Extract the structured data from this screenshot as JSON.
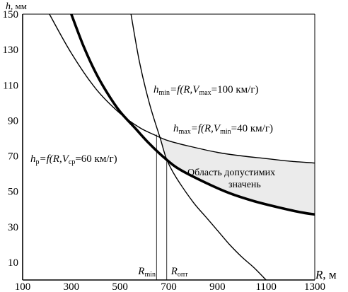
{
  "chart_data": {
    "type": "line",
    "xlabel": {
      "var": "R",
      "unit": ", м"
    },
    "ylabel": {
      "var": "h",
      "unit": ", мм"
    },
    "xlim": [
      100,
      1300
    ],
    "ylim": [
      0,
      150
    ],
    "x_ticks": [
      "100",
      "300",
      "500",
      "700",
      "900",
      "1100",
      "1300"
    ],
    "x_tick_values": [
      100,
      300,
      500,
      700,
      900,
      1100,
      1300
    ],
    "y_ticks": [
      "10",
      "30",
      "50",
      "70",
      "90",
      "110",
      "130",
      "150"
    ],
    "y_tick_values": [
      10,
      30,
      50,
      70,
      90,
      110,
      130,
      150
    ],
    "grid": false,
    "series": [
      {
        "key": "hmax",
        "style": "thin",
        "points": [
          [
            210,
            150
          ],
          [
            300,
            128
          ],
          [
            400,
            108
          ],
          [
            500,
            94
          ],
          [
            580,
            86
          ],
          [
            640,
            82
          ],
          [
            700,
            78.5
          ],
          [
            800,
            75
          ],
          [
            900,
            72
          ],
          [
            1000,
            70
          ],
          [
            1100,
            68.5
          ],
          [
            1200,
            67
          ],
          [
            1300,
            66
          ]
        ]
      },
      {
        "key": "hp",
        "style": "thick",
        "points": [
          [
            300,
            150
          ],
          [
            350,
            132
          ],
          [
            400,
            117
          ],
          [
            450,
            105
          ],
          [
            500,
            95
          ],
          [
            560,
            86
          ],
          [
            620,
            77
          ],
          [
            690,
            68
          ],
          [
            750,
            62
          ],
          [
            850,
            55
          ],
          [
            950,
            49
          ],
          [
            1050,
            44.5
          ],
          [
            1150,
            41
          ],
          [
            1250,
            38
          ],
          [
            1300,
            37
          ]
        ]
      },
      {
        "key": "hmin",
        "style": "thin",
        "points": [
          [
            545,
            150
          ],
          [
            580,
            123
          ],
          [
            620,
            100
          ],
          [
            665,
            80
          ],
          [
            692,
            68
          ],
          [
            730,
            58
          ],
          [
            800,
            44
          ],
          [
            850,
            36
          ],
          [
            900,
            28
          ],
          [
            950,
            20
          ],
          [
            1000,
            13
          ],
          [
            1050,
            7
          ],
          [
            1100,
            0
          ]
        ]
      }
    ],
    "verticals": [
      {
        "x": 650,
        "y_top": 82,
        "label": {
          "main": "R",
          "sub": "min"
        }
      },
      {
        "x": 692,
        "y_top": 68,
        "label": {
          "main": "R",
          "sub": "опт"
        }
      }
    ],
    "annotations": {
      "hmin": {
        "h": "h",
        "h_sub": "min",
        "mid": "=f(R,V",
        "v_sub": "max",
        "tail": "=100 км/г)"
      },
      "hmax": {
        "h": "h",
        "h_sub": "max",
        "mid": "=f(R,V",
        "v_sub": "min",
        "tail": "=40 км/г)"
      },
      "hp": {
        "h": "h",
        "h_sub": "р",
        "mid": "=f(R,V",
        "v_sub": "ср",
        "tail": "=60 км/г)"
      },
      "region_line1": "Область допустимих",
      "region_line2": "значень"
    },
    "region_fill": "#ebebeb"
  }
}
